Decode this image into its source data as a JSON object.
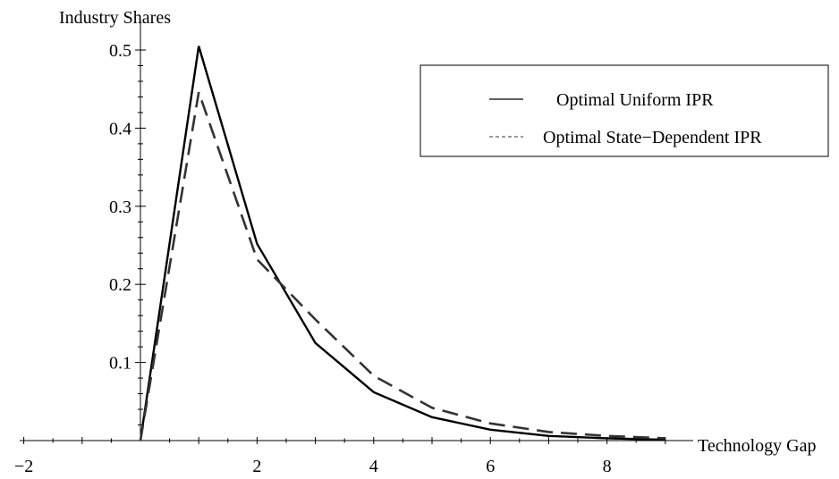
{
  "chart_data": {
    "type": "line",
    "xlabel": "Technology Gap",
    "ylabel": "Industry Shares",
    "xlim": [
      -2,
      9
    ],
    "ylim": [
      0,
      0.5
    ],
    "x_ticks": [
      -2,
      2,
      4,
      6,
      8
    ],
    "x_tick_labels": [
      "−2",
      "2",
      "4",
      "6",
      "8"
    ],
    "y_ticks": [
      0.1,
      0.2,
      0.3,
      0.4,
      0.5
    ],
    "y_tick_labels": [
      "0.1",
      "0.2",
      "0.3",
      "0.4",
      "0.5"
    ],
    "grid": false,
    "legend_position": "top-right",
    "series": [
      {
        "name": "Optimal Uniform IPR",
        "style": "solid",
        "color": "#000000",
        "x": [
          0,
          1,
          2,
          3,
          4,
          5,
          6,
          7,
          8,
          9
        ],
        "values": [
          0,
          0.505,
          0.252,
          0.125,
          0.062,
          0.03,
          0.014,
          0.006,
          0.003,
          0.001
        ]
      },
      {
        "name": "Optimal State−Dependent IPR",
        "style": "dashed",
        "color": "#333333",
        "x": [
          0,
          1,
          2,
          3,
          4,
          5,
          6,
          7,
          8,
          9
        ],
        "values": [
          0,
          0.446,
          0.232,
          0.155,
          0.083,
          0.042,
          0.022,
          0.011,
          0.006,
          0.003
        ]
      }
    ]
  }
}
